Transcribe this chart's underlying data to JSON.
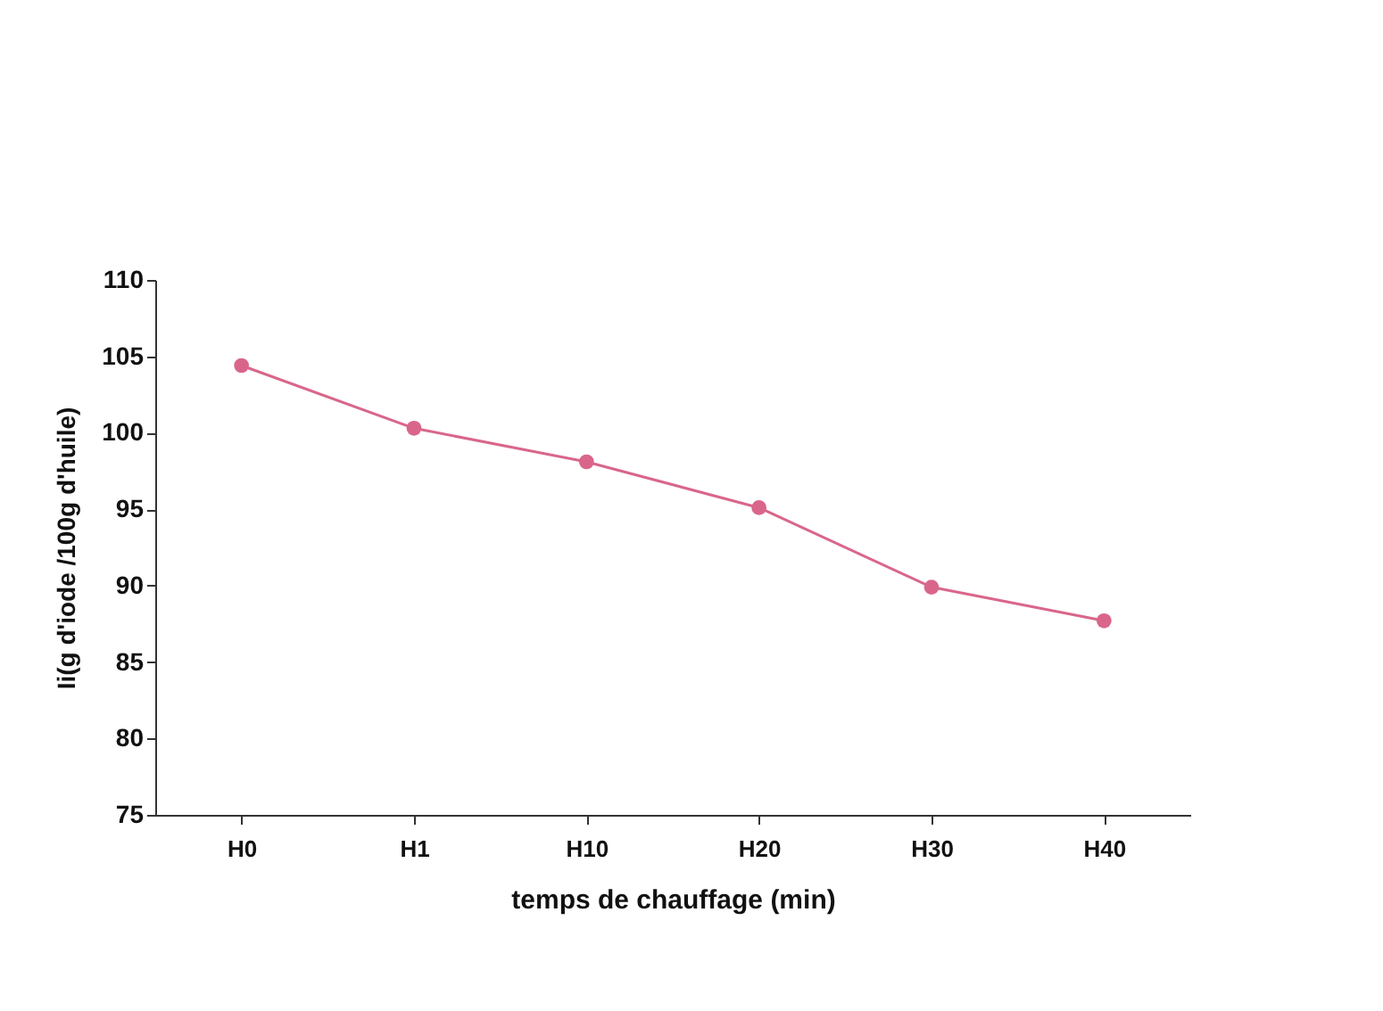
{
  "chart_data": {
    "type": "line",
    "xlabel": "temps de chauffage (min)",
    "ylabel": "Ii(g d'iode /100g d'huile)",
    "categories": [
      "H0",
      "H1",
      "H10",
      "H20",
      "H30",
      "H40"
    ],
    "series": [
      {
        "color": "#d9668a",
        "values": [
          104.4,
          100.3,
          98.1,
          95.1,
          89.9,
          87.7
        ]
      }
    ],
    "ylim": [
      75,
      110
    ],
    "yticks": [
      75,
      80,
      85,
      90,
      95,
      100,
      105,
      110
    ],
    "grid": false,
    "marker": "circle",
    "line_style": "solid"
  }
}
